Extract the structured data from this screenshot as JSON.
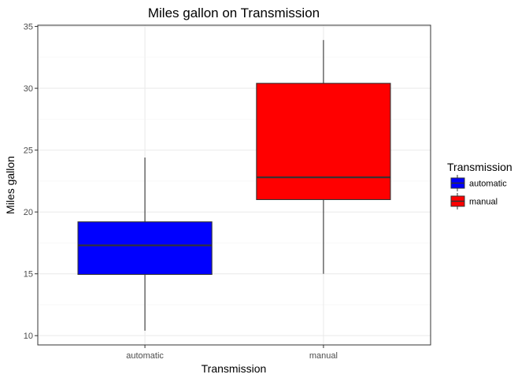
{
  "chart_data": {
    "type": "boxplot",
    "title": "Miles gallon on Transmission",
    "xlabel": "Transmission",
    "ylabel": "Miles gallon",
    "ylim": [
      9.25,
      35.1
    ],
    "yticks": [
      10,
      15,
      20,
      25,
      30,
      35
    ],
    "grid": true,
    "legend": {
      "title": "Transmission",
      "position": "right"
    },
    "categories": [
      "automatic",
      "manual"
    ],
    "boxes": [
      {
        "name": "automatic",
        "min": 10.4,
        "q1": 14.95,
        "median": 17.3,
        "q3": 19.2,
        "max": 24.4,
        "color": "#0000ff"
      },
      {
        "name": "manual",
        "min": 15.0,
        "q1": 21.0,
        "median": 22.8,
        "q3": 30.4,
        "max": 33.9,
        "color": "#ff0000"
      }
    ]
  }
}
